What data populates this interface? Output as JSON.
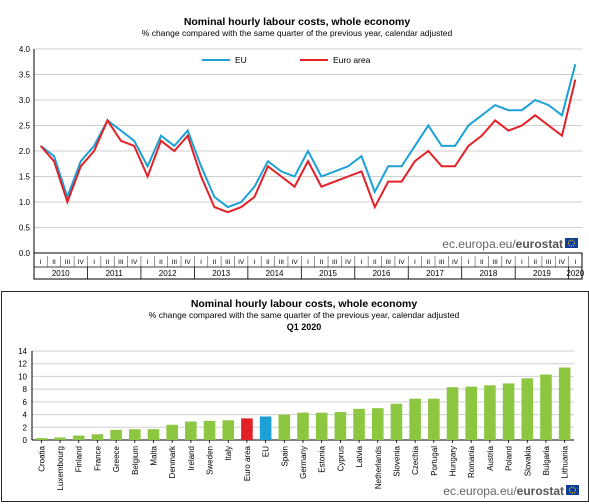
{
  "chart_data": [
    {
      "type": "line",
      "title": "Nominal hourly labour costs, whole economy",
      "subtitle": "% change compared with the same quarter of the previous  year, calendar adjusted",
      "ylim": [
        0,
        4
      ],
      "yticks": [
        "0.0",
        "0.5",
        "1.0",
        "1.5",
        "2.0",
        "2.5",
        "3.0",
        "3.5",
        "4.0"
      ],
      "quarters": [
        "I",
        "II",
        "III",
        "IV",
        "I",
        "II",
        "III",
        "IV",
        "I",
        "II",
        "III",
        "IV",
        "I",
        "II",
        "III",
        "IV",
        "I",
        "II",
        "III",
        "IV",
        "I",
        "II",
        "III",
        "IV",
        "I",
        "II",
        "III",
        "IV",
        "I",
        "II",
        "III",
        "IV",
        "I",
        "II",
        "III",
        "IV",
        "I",
        "II",
        "III",
        "IV",
        "I"
      ],
      "years": [
        "2010",
        "2011",
        "2012",
        "2013",
        "2014",
        "2015",
        "2016",
        "2017",
        "2018",
        "2019",
        "2020"
      ],
      "legend_position": "top-center",
      "series": [
        {
          "name": "EU",
          "color": "#1ba1d6",
          "values": [
            2.1,
            1.9,
            1.1,
            1.8,
            2.1,
            2.6,
            2.4,
            2.2,
            1.7,
            2.3,
            2.1,
            2.4,
            1.7,
            1.1,
            0.9,
            1.0,
            1.3,
            1.8,
            1.6,
            1.5,
            2.0,
            1.5,
            1.6,
            1.7,
            1.9,
            1.2,
            1.7,
            1.7,
            2.1,
            2.5,
            2.1,
            2.1,
            2.5,
            2.7,
            2.9,
            2.8,
            2.8,
            3.0,
            2.9,
            2.7,
            3.7
          ]
        },
        {
          "name": "Euro area",
          "color": "#e32026",
          "values": [
            2.1,
            1.8,
            1.0,
            1.7,
            2.0,
            2.6,
            2.2,
            2.1,
            1.5,
            2.2,
            2.0,
            2.3,
            1.5,
            0.9,
            0.8,
            0.9,
            1.1,
            1.7,
            1.5,
            1.3,
            1.8,
            1.3,
            1.4,
            1.5,
            1.6,
            0.9,
            1.4,
            1.4,
            1.8,
            2.0,
            1.7,
            1.7,
            2.1,
            2.3,
            2.6,
            2.4,
            2.5,
            2.7,
            2.5,
            2.3,
            3.4
          ]
        }
      ],
      "watermark": "ec.europa.eu/",
      "watermark_bold": "eurostat"
    },
    {
      "type": "bar",
      "title": "Nominal hourly labour costs, whole economy",
      "subtitle": "% change compared with the same quarter of the previous  year, calendar adjusted",
      "period": "Q1 2020",
      "ylim": [
        0,
        14
      ],
      "yticks": [
        "0",
        "2",
        "4",
        "6",
        "8",
        "10",
        "12",
        "14"
      ],
      "categories": [
        "Croatia",
        "Luxembourg",
        "Finland",
        "France",
        "Greece",
        "Belgium",
        "Malta",
        "Denmark",
        "Ireland",
        "Sweden",
        "Italy",
        "Euro area",
        "EU",
        "Spain",
        "Germany",
        "Estonia",
        "Cyprus",
        "Latvia",
        "Netherlands",
        "Slovenia",
        "Czechia",
        "Portugal",
        "Hungary",
        "Romania",
        "Austria",
        "Poland",
        "Slovakia",
        "Bulgaria",
        "Lithuania"
      ],
      "values": [
        0.3,
        0.4,
        0.7,
        0.9,
        1.6,
        1.7,
        1.7,
        2.4,
        2.9,
        3.0,
        3.1,
        3.4,
        3.7,
        4.0,
        4.3,
        4.3,
        4.4,
        4.9,
        5.0,
        5.7,
        6.5,
        6.5,
        8.3,
        8.4,
        8.6,
        8.9,
        9.7,
        10.3,
        11.4
      ],
      "colors": {
        "default": "#8dc641",
        "Euro area": "#e32026",
        "EU": "#1ba1d6"
      },
      "watermark": "ec.europa.eu/",
      "watermark_bold": "eurostat"
    }
  ]
}
